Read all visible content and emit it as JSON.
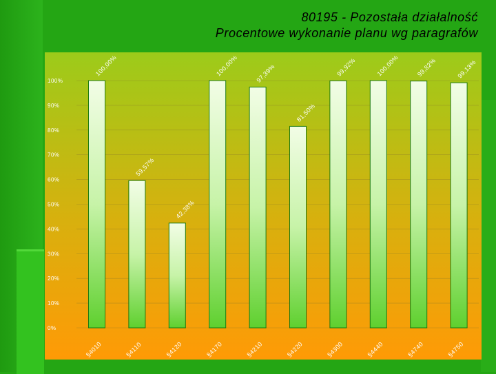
{
  "title": {
    "line1": "80195 - Pozostała działalność",
    "line2": "Procentowe wykonanie planu wg paragrafów"
  },
  "colors": {
    "background": "#24a614",
    "plot_top": "#9ccb1a",
    "plot_bottom": "#ff9a06",
    "bar_top": "#f2fde6",
    "bar_bottom": "#5fd02f",
    "bar_border": "#1d7a10",
    "gridline": "#8a7a2a"
  },
  "chart_data": {
    "type": "bar",
    "categories": [
      "§4010",
      "§4110",
      "§4120",
      "§4170",
      "§4210",
      "§4220",
      "§4300",
      "§4440",
      "§4740",
      "§4750"
    ],
    "values": [
      100.0,
      59.57,
      42.38,
      100.0,
      97.39,
      81.5,
      99.92,
      100.0,
      99.82,
      99.13
    ],
    "data_labels": [
      "100,00%",
      "59,57%",
      "42,38%",
      "100,00%",
      "97,39%",
      "81,50%",
      "99,92%",
      "100,00%",
      "99,82%",
      "99,13%"
    ],
    "y_ticks": [
      "0%",
      "10%",
      "20%",
      "30%",
      "40%",
      "50%",
      "60%",
      "70%",
      "80%",
      "90%",
      "100%"
    ],
    "ylim": [
      0,
      100
    ],
    "grid": true,
    "legend": "none",
    "title": "80195 - Pozostała działalność Procentowe wykonanie planu wg paragrafów",
    "xlabel": "",
    "ylabel": ""
  }
}
